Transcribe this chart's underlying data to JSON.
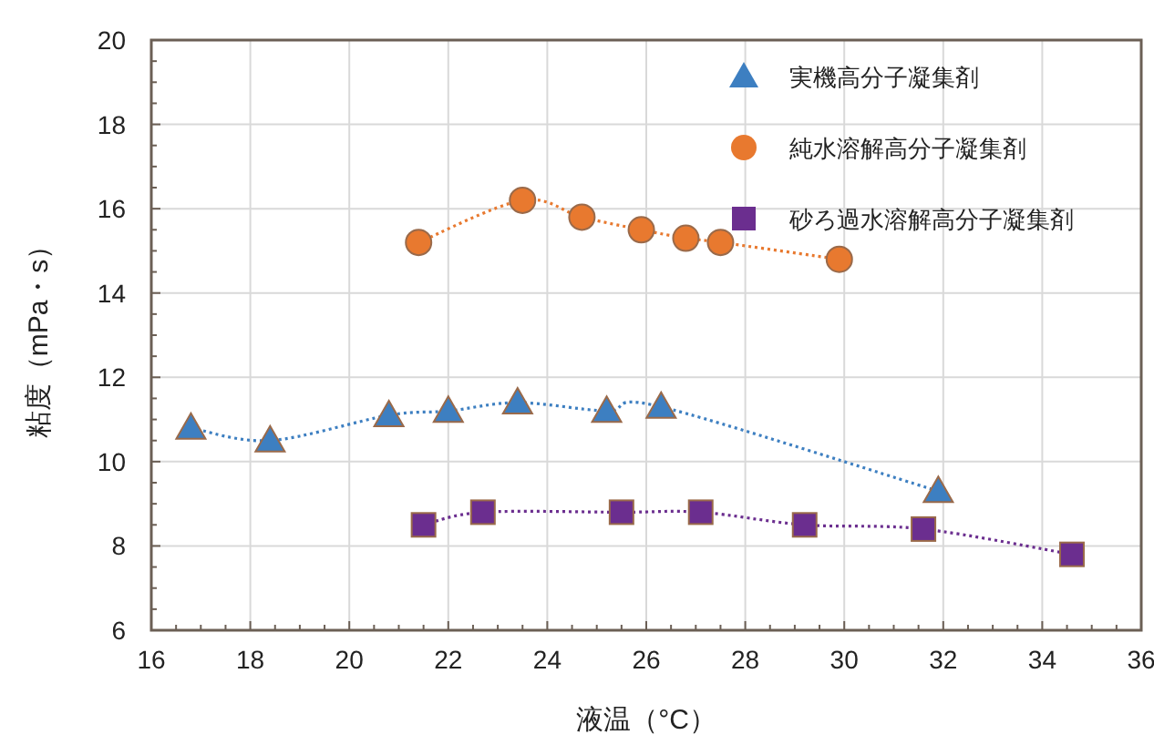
{
  "chart_data": {
    "type": "line",
    "xlabel": "液温（°C）",
    "ylabel": "粘度（mPa・s）",
    "xlim": [
      16,
      36
    ],
    "xticks": [
      16,
      18,
      20,
      22,
      24,
      26,
      28,
      30,
      32,
      34,
      36
    ],
    "ylim": [
      6,
      20
    ],
    "yticks": [
      6,
      8,
      10,
      12,
      14,
      16,
      18,
      20
    ],
    "grid": true,
    "legend": "top right",
    "line_style": "dotted",
    "series": [
      {
        "name": "実機高分子凝集剤",
        "color": "#3d7fc1",
        "marker": "triangle",
        "x": [
          16.8,
          18.4,
          20.8,
          22,
          23.4,
          25.2,
          26.3,
          31.9
        ],
        "values": [
          10.8,
          10.5,
          11.1,
          11.2,
          11.4,
          11.2,
          11.3,
          9.3
        ]
      },
      {
        "name": "純水溶解高分子凝集剤",
        "color": "#e8792f",
        "marker": "circle",
        "x": [
          21.4,
          23.5,
          24.7,
          25.9,
          26.8,
          27.5,
          29.9
        ],
        "values": [
          15.2,
          16.2,
          15.8,
          15.5,
          15.3,
          15.2,
          14.8
        ]
      },
      {
        "name": "砂ろ過水溶解高分子凝集剤",
        "color": "#6b2e8f",
        "marker": "square",
        "x": [
          21.5,
          22.7,
          25.5,
          27.1,
          29.2,
          31.6,
          34.6
        ],
        "values": [
          8.5,
          8.8,
          8.8,
          8.8,
          8.5,
          8.4,
          7.8
        ]
      }
    ]
  }
}
